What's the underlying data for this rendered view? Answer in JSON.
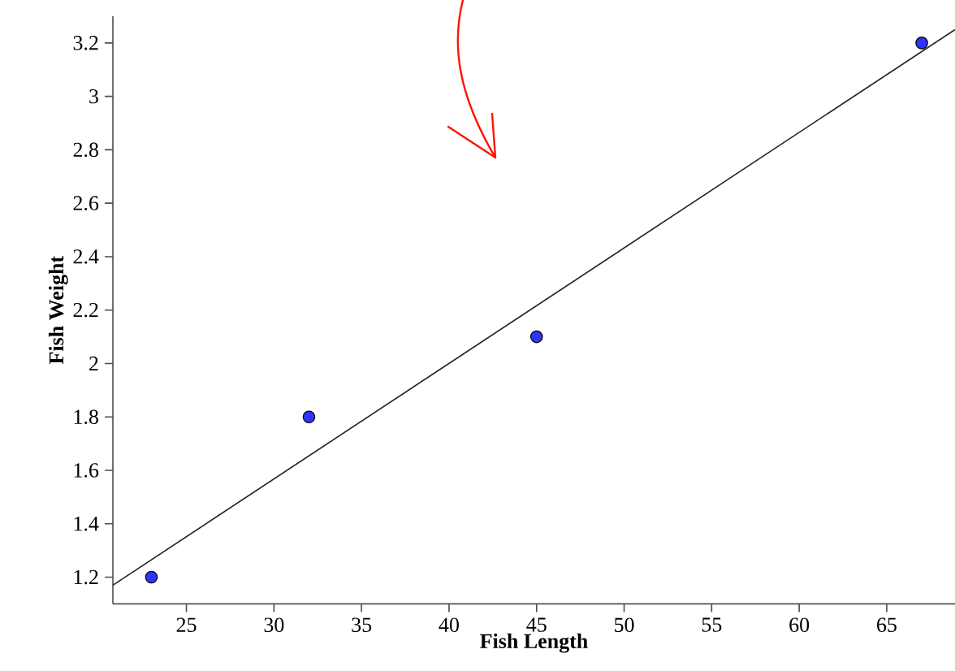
{
  "chart_data": {
    "type": "scatter",
    "xlabel": "Fish Length",
    "ylabel": "Fish Weight",
    "xlim": [
      20.8,
      68.9
    ],
    "ylim": [
      1.1,
      3.3
    ],
    "xticks": [
      25,
      30,
      35,
      40,
      45,
      50,
      55,
      60,
      65
    ],
    "yticks": [
      1.2,
      1.4,
      1.6,
      1.8,
      2,
      2.2,
      2.4,
      2.6,
      2.8,
      3,
      3.2
    ],
    "grid": false,
    "series": [
      {
        "type": "scatter",
        "marker": "circle",
        "color": "#3333ff",
        "x": [
          23,
          32,
          45,
          67
        ],
        "values": [
          1.2,
          1.8,
          2.1,
          3.2
        ]
      },
      {
        "type": "line",
        "marker": "none",
        "color": "#222222",
        "x": [
          20.8,
          68.9
        ],
        "values": [
          1.17,
          3.25
        ]
      }
    ]
  }
}
